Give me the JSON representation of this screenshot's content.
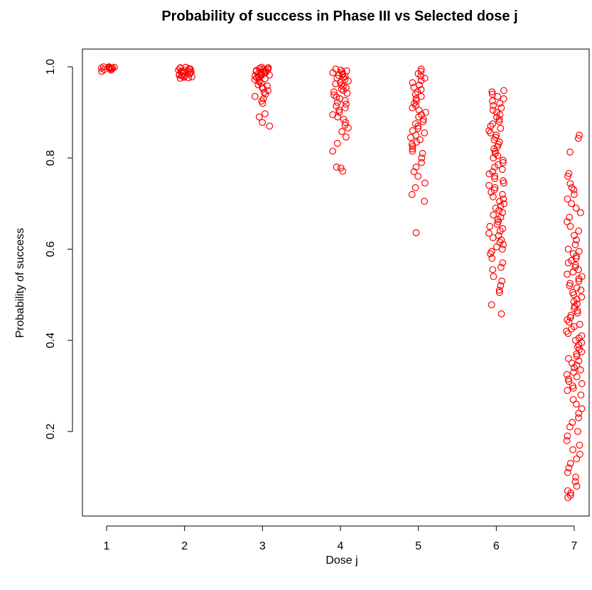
{
  "chart_data": {
    "type": "scatter",
    "title": "Probability of success in Phase III  vs  Selected dose j",
    "xlabel": "Dose  j",
    "ylabel": "Probability of success",
    "xlim": [
      0.9,
      7.1
    ],
    "ylim": [
      0.05,
      1.0
    ],
    "x_ticks": [
      1,
      2,
      3,
      4,
      5,
      6,
      7
    ],
    "y_ticks": [
      0.2,
      0.4,
      0.6,
      0.8,
      1.0
    ],
    "y_tick_labels": [
      "0.2",
      "0.4",
      "0.6",
      "0.8",
      "1.0"
    ],
    "grid": false,
    "jitter": "horizontal",
    "point_color": "#ff0000",
    "marker": "open-circle",
    "series": [
      {
        "dose": 1,
        "y": [
          1.0,
          1.0,
          0.999,
          0.999,
          0.998,
          0.998,
          0.997,
          0.997,
          0.996,
          0.996,
          0.995,
          0.994,
          0.993,
          0.99
        ]
      },
      {
        "dose": 2,
        "y": [
          0.999,
          0.998,
          0.997,
          0.996,
          0.995,
          0.994,
          0.993,
          0.992,
          0.991,
          0.99,
          0.99,
          0.989,
          0.988,
          0.987,
          0.986,
          0.985,
          0.984,
          0.983,
          0.982,
          0.981,
          0.98,
          0.979,
          0.978,
          0.977,
          0.976,
          0.975
        ]
      },
      {
        "dose": 3,
        "y": [
          0.999,
          0.998,
          0.997,
          0.996,
          0.995,
          0.994,
          0.993,
          0.992,
          0.991,
          0.99,
          0.989,
          0.988,
          0.987,
          0.986,
          0.985,
          0.984,
          0.983,
          0.982,
          0.981,
          0.98,
          0.978,
          0.976,
          0.974,
          0.972,
          0.97,
          0.967,
          0.964,
          0.961,
          0.958,
          0.955,
          0.952,
          0.948,
          0.944,
          0.94,
          0.935,
          0.93,
          0.925,
          0.92,
          0.897,
          0.89,
          0.878,
          0.87
        ]
      },
      {
        "dose": 4,
        "y": [
          0.995,
          0.993,
          0.991,
          0.989,
          0.987,
          0.985,
          0.983,
          0.981,
          0.979,
          0.977,
          0.975,
          0.972,
          0.969,
          0.966,
          0.963,
          0.96,
          0.957,
          0.954,
          0.951,
          0.948,
          0.945,
          0.942,
          0.938,
          0.934,
          0.93,
          0.926,
          0.922,
          0.918,
          0.914,
          0.91,
          0.905,
          0.9,
          0.895,
          0.89,
          0.885,
          0.878,
          0.872,
          0.866,
          0.858,
          0.846,
          0.832,
          0.815,
          0.78,
          0.778,
          0.771
        ]
      },
      {
        "dose": 5,
        "y": [
          0.995,
          0.99,
          0.985,
          0.98,
          0.975,
          0.97,
          0.965,
          0.96,
          0.955,
          0.95,
          0.945,
          0.94,
          0.935,
          0.93,
          0.925,
          0.92,
          0.915,
          0.91,
          0.905,
          0.9,
          0.895,
          0.89,
          0.885,
          0.88,
          0.875,
          0.87,
          0.865,
          0.86,
          0.855,
          0.85,
          0.845,
          0.84,
          0.835,
          0.83,
          0.825,
          0.82,
          0.815,
          0.81,
          0.8,
          0.79,
          0.78,
          0.77,
          0.76,
          0.745,
          0.735,
          0.72,
          0.705,
          0.636
        ]
      },
      {
        "dose": 6,
        "y": [
          0.948,
          0.945,
          0.94,
          0.935,
          0.93,
          0.925,
          0.92,
          0.915,
          0.91,
          0.905,
          0.9,
          0.895,
          0.89,
          0.885,
          0.88,
          0.875,
          0.87,
          0.865,
          0.86,
          0.855,
          0.85,
          0.845,
          0.84,
          0.835,
          0.83,
          0.825,
          0.82,
          0.815,
          0.81,
          0.805,
          0.8,
          0.795,
          0.79,
          0.785,
          0.78,
          0.775,
          0.77,
          0.765,
          0.76,
          0.755,
          0.75,
          0.745,
          0.74,
          0.735,
          0.73,
          0.725,
          0.72,
          0.715,
          0.71,
          0.705,
          0.7,
          0.695,
          0.69,
          0.685,
          0.68,
          0.675,
          0.67,
          0.665,
          0.66,
          0.655,
          0.65,
          0.645,
          0.64,
          0.635,
          0.63,
          0.625,
          0.62,
          0.615,
          0.61,
          0.605,
          0.6,
          0.595,
          0.59,
          0.58,
          0.57,
          0.56,
          0.555,
          0.54,
          0.53,
          0.52,
          0.51,
          0.505,
          0.478,
          0.458
        ]
      },
      {
        "dose": 7,
        "y": [
          0.85,
          0.843,
          0.813,
          0.766,
          0.76,
          0.744,
          0.735,
          0.73,
          0.72,
          0.71,
          0.7,
          0.69,
          0.68,
          0.67,
          0.66,
          0.65,
          0.64,
          0.63,
          0.62,
          0.61,
          0.6,
          0.595,
          0.59,
          0.585,
          0.58,
          0.575,
          0.57,
          0.565,
          0.56,
          0.555,
          0.55,
          0.545,
          0.54,
          0.535,
          0.53,
          0.525,
          0.52,
          0.515,
          0.51,
          0.505,
          0.5,
          0.495,
          0.49,
          0.485,
          0.48,
          0.475,
          0.47,
          0.465,
          0.46,
          0.455,
          0.45,
          0.445,
          0.44,
          0.435,
          0.43,
          0.425,
          0.42,
          0.415,
          0.41,
          0.405,
          0.4,
          0.395,
          0.39,
          0.385,
          0.38,
          0.375,
          0.37,
          0.365,
          0.36,
          0.355,
          0.35,
          0.345,
          0.34,
          0.335,
          0.33,
          0.325,
          0.32,
          0.315,
          0.31,
          0.305,
          0.3,
          0.295,
          0.29,
          0.28,
          0.27,
          0.26,
          0.25,
          0.24,
          0.23,
          0.22,
          0.21,
          0.2,
          0.19,
          0.18,
          0.17,
          0.16,
          0.15,
          0.14,
          0.13,
          0.12,
          0.11,
          0.1,
          0.09,
          0.08,
          0.07,
          0.065,
          0.06,
          0.055
        ]
      }
    ]
  }
}
